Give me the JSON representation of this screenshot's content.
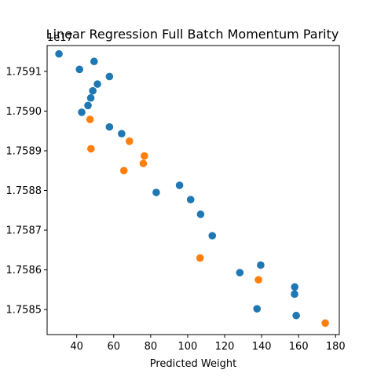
{
  "chart_data": {
    "type": "scatter",
    "title": "Linear Regression Full Batch Momentum Parity",
    "xlabel": "Predicted Weight",
    "ylabel": "",
    "y_offset_label": "1e17",
    "xlim": [
      24,
      182
    ],
    "ylim": [
      1.758437,
      1.759165
    ],
    "x_ticks": [
      40,
      60,
      80,
      100,
      120,
      140,
      160,
      180
    ],
    "y_ticks": [
      1.7585,
      1.7586,
      1.7587,
      1.7588,
      1.7589,
      1.759,
      1.7591
    ],
    "y_tick_labels": [
      "1.7585",
      "1.7586",
      "1.7587",
      "1.7588",
      "1.7589",
      "1.7590",
      "1.7591"
    ],
    "grid": false,
    "legend": "none",
    "colors": {
      "series1": "#1f77b4",
      "series2": "#ff7f0e"
    },
    "series": [
      {
        "color": "#1f77b4",
        "points": [
          {
            "x": 30.4,
            "y": 1.759144
          },
          {
            "x": 49.4,
            "y": 1.759125
          },
          {
            "x": 41.5,
            "y": 1.759105
          },
          {
            "x": 57.7,
            "y": 1.759087
          },
          {
            "x": 51.2,
            "y": 1.759068
          },
          {
            "x": 48.7,
            "y": 1.759051
          },
          {
            "x": 47.6,
            "y": 1.759033
          },
          {
            "x": 46.1,
            "y": 1.759014
          },
          {
            "x": 42.7,
            "y": 1.758997
          },
          {
            "x": 57.7,
            "y": 1.75896
          },
          {
            "x": 64.3,
            "y": 1.758943
          },
          {
            "x": 95.6,
            "y": 1.758813
          },
          {
            "x": 83.0,
            "y": 1.758795
          },
          {
            "x": 101.6,
            "y": 1.758777
          },
          {
            "x": 107.0,
            "y": 1.75874
          },
          {
            "x": 113.3,
            "y": 1.758686
          },
          {
            "x": 139.5,
            "y": 1.758612
          },
          {
            "x": 128.2,
            "y": 1.758593
          },
          {
            "x": 157.9,
            "y": 1.758557
          },
          {
            "x": 157.8,
            "y": 1.758539
          },
          {
            "x": 137.5,
            "y": 1.758502
          },
          {
            "x": 158.7,
            "y": 1.758485
          }
        ]
      },
      {
        "color": "#ff7f0e",
        "points": [
          {
            "x": 47.2,
            "y": 1.758979
          },
          {
            "x": 68.5,
            "y": 1.758924
          },
          {
            "x": 47.7,
            "y": 1.758905
          },
          {
            "x": 76.6,
            "y": 1.758887
          },
          {
            "x": 76.0,
            "y": 1.758868
          },
          {
            "x": 65.5,
            "y": 1.75885
          },
          {
            "x": 106.7,
            "y": 1.75863
          },
          {
            "x": 138.3,
            "y": 1.758575
          },
          {
            "x": 174.4,
            "y": 1.758466
          }
        ]
      }
    ]
  }
}
